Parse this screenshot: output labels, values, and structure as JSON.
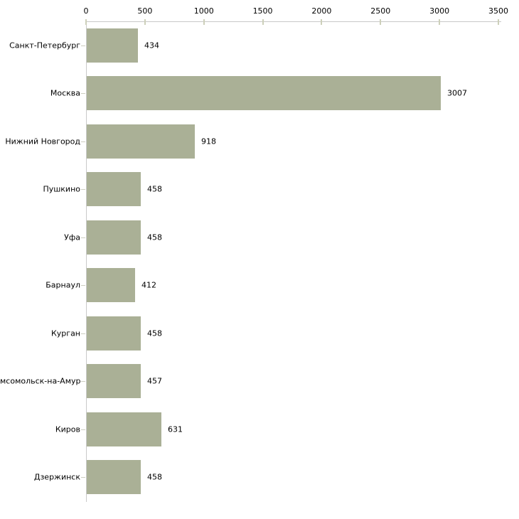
{
  "chart": {
    "background": "#ffffff",
    "bar_color": "#aab096",
    "axis_color": "#c9c9c9",
    "tick_color": "#cdd0ba",
    "text_color": "#000000"
  },
  "chart_data": {
    "type": "bar",
    "orientation": "horizontal",
    "title": "",
    "xlabel": "",
    "ylabel": "",
    "grid": false,
    "legend": false,
    "value_labels": true,
    "axis_position": "top",
    "xlim": [
      0,
      3500
    ],
    "xticks": [
      0,
      500,
      1000,
      1500,
      2000,
      2500,
      3000,
      3500
    ],
    "categories": [
      "Санкт-Петербург",
      "Москва",
      "Нижний Новгород",
      "Пушкино",
      "Уфа",
      "Барнаул",
      "Курган",
      "мсомольск-на-Амуре",
      "Киров",
      "Дзержинск"
    ],
    "values": [
      434,
      3007,
      918,
      458,
      458,
      412,
      458,
      457,
      631,
      458
    ]
  }
}
